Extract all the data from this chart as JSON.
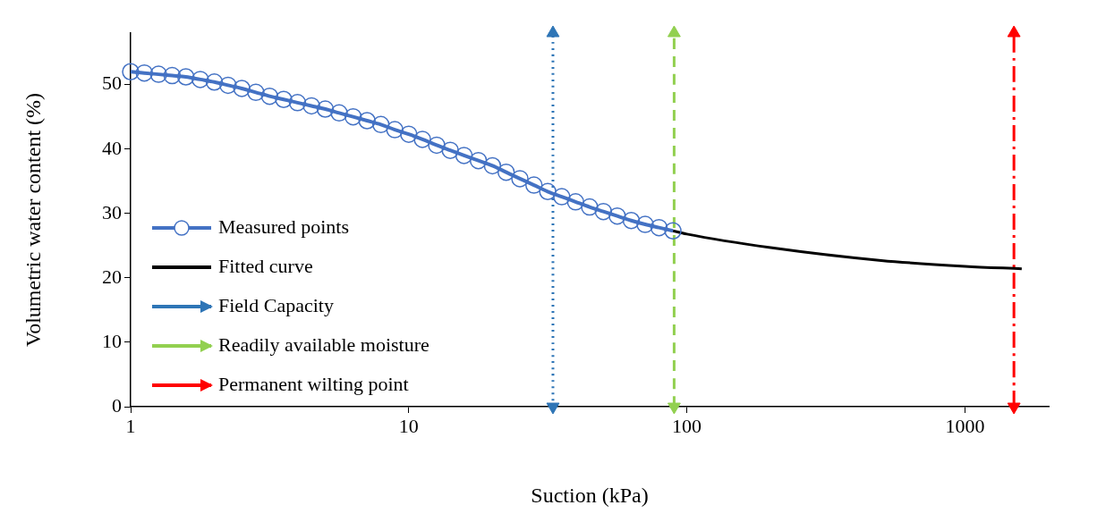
{
  "chart_data": {
    "type": "line",
    "xlabel": "Suction (kPa)",
    "ylabel": "Volumetric water content (%)",
    "log": "x",
    "xlim": [
      1,
      2000
    ],
    "xticks": [
      1,
      10,
      100,
      1000
    ],
    "ylim": [
      0,
      58
    ],
    "yticks": [
      0,
      10,
      20,
      30,
      40,
      50
    ],
    "grid": false,
    "legend": "bottom left",
    "series": [
      {
        "name": "Measured points",
        "color": "#4472c4",
        "marker": "circle",
        "line_style": "solid",
        "x": [
          1,
          1.12,
          1.26,
          1.41,
          1.58,
          1.78,
          2,
          2.24,
          2.51,
          2.82,
          3.16,
          3.55,
          3.98,
          4.47,
          5.01,
          5.62,
          6.31,
          7.08,
          7.94,
          8.91,
          10,
          11.2,
          12.6,
          14.1,
          15.8,
          17.8,
          20,
          22.4,
          25.1,
          28.2,
          31.6,
          35.5,
          39.8,
          44.7,
          50.1,
          56.2,
          63.1,
          70.8,
          79.4,
          89.1
        ],
        "values": [
          52,
          51.8,
          51.6,
          51.4,
          51.2,
          50.8,
          50.4,
          49.9,
          49.4,
          48.8,
          48.2,
          47.7,
          47.2,
          46.7,
          46.2,
          45.6,
          45,
          44.4,
          43.8,
          43,
          42.3,
          41.5,
          40.6,
          39.8,
          39,
          38.2,
          37.4,
          36.4,
          35.4,
          34.4,
          33.4,
          32.6,
          31.8,
          31,
          30.3,
          29.6,
          28.9,
          28.3,
          27.8,
          27.3
        ]
      },
      {
        "name": "Fitted curve",
        "color": "#000000",
        "marker": "none",
        "line_style": "solid",
        "x": [
          89.1,
          100,
          200,
          500,
          1000,
          1600
        ],
        "values": [
          27.3,
          26.8,
          24.7,
          22.7,
          21.8,
          21.4
        ]
      },
      {
        "name": "Field Capacity",
        "color": "#2e75b6",
        "marker": "triangle",
        "line_style": "dotted",
        "x": [
          33,
          33
        ],
        "values": [
          0,
          58
        ]
      },
      {
        "name": "Readily available moisture",
        "color": "#92d050",
        "marker": "triangle",
        "line_style": "dashed",
        "x": [
          90,
          90
        ],
        "values": [
          0,
          58
        ]
      },
      {
        "name": "Permanent wilting point",
        "color": "#ff0000",
        "marker": "triangle",
        "line_style": "dashdot",
        "x": [
          1500,
          1500
        ],
        "values": [
          0,
          58
        ]
      }
    ]
  }
}
